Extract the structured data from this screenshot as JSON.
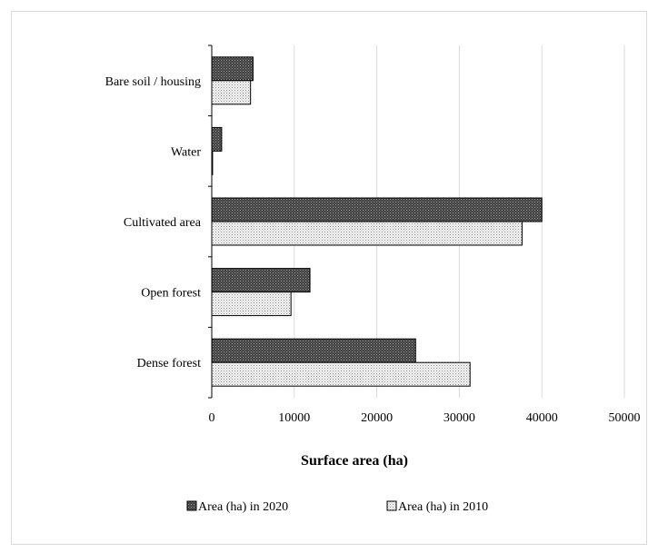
{
  "chart_data": {
    "type": "bar",
    "orientation": "horizontal",
    "title": "",
    "xlabel": "Surface area (ha)",
    "ylabel": "",
    "xlim": [
      0,
      50000
    ],
    "xticks": [
      0,
      10000,
      20000,
      30000,
      40000,
      50000
    ],
    "xtick_labels": [
      "0",
      "10000",
      "20000",
      "30000",
      "40000",
      "50000"
    ],
    "grid": true,
    "legend_position": "bottom",
    "categories": [
      "Bare soil / housing",
      "Water",
      "Cultivated area",
      "Open forest",
      "Dense forest"
    ],
    "series": [
      {
        "name": "Area (ha) in 2020",
        "legend_label": "Area (ha) in 2020",
        "values": [
          5000,
          1200,
          40000,
          11900,
          24700
        ],
        "pattern": "dark-dotted"
      },
      {
        "name": "Area (ha) in 2010",
        "legend_label": "Area (ha) in 2010",
        "values": [
          4700,
          100,
          37600,
          9600,
          31300
        ],
        "pattern": "light-dotted"
      }
    ]
  },
  "colors": {
    "bar_2020_base": "#555555",
    "bar_2010_base": "#f2f2f2",
    "grid": "#d9d9d9",
    "axis": "#000000"
  }
}
